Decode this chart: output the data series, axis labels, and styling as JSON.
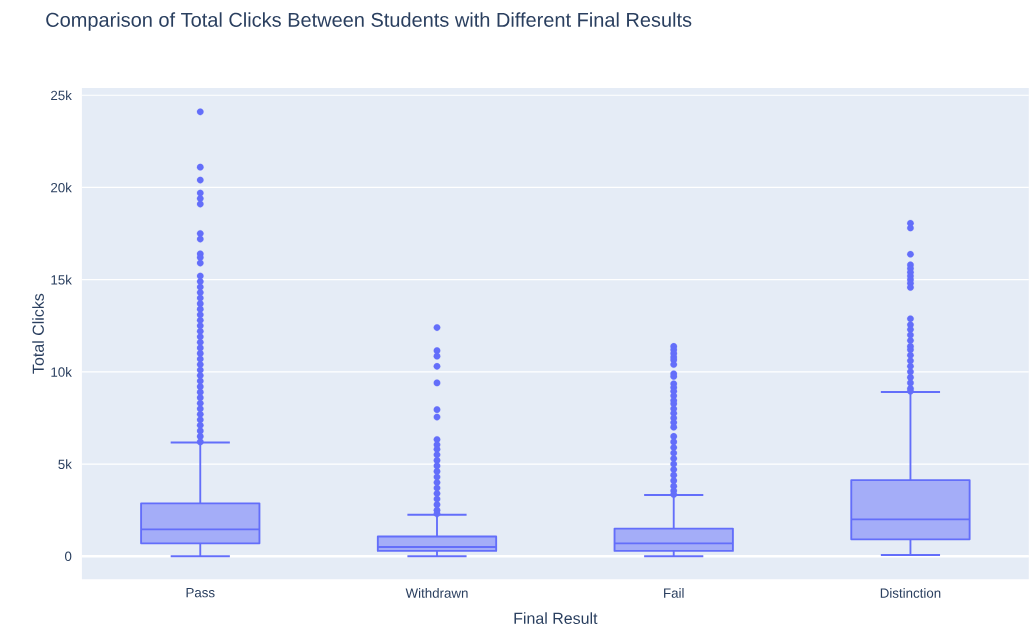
{
  "chart_data": {
    "type": "box",
    "title": "Comparison of Total Clicks Between Students with Different Final Results",
    "xlabel": "Final Result",
    "ylabel": "Total Clicks",
    "categories": [
      "Pass",
      "Withdrawn",
      "Fail",
      "Distinction"
    ],
    "color": "#636efa",
    "boxes": [
      {
        "low": 0,
        "q1": 700,
        "median": 1460,
        "q3": 2870,
        "high": 6170,
        "outliers": [
          24100,
          21100,
          20400,
          19700,
          19400,
          19100,
          17500,
          17200,
          16400,
          16200,
          15900,
          15200,
          14900,
          14600,
          14300,
          14000,
          13700,
          13400,
          13100,
          12800,
          12500,
          12200,
          11900,
          11600,
          11300,
          11000,
          10700,
          10400,
          10100,
          9800,
          9500,
          9200,
          8900,
          8600,
          8300,
          8000,
          7700,
          7400,
          7100,
          6800,
          6500,
          6200
        ]
      },
      {
        "low": 0,
        "q1": 290,
        "median": 500,
        "q3": 1070,
        "high": 2250,
        "outliers": [
          12400,
          11150,
          10850,
          10300,
          9400,
          7950,
          7550,
          6330,
          6050,
          5800,
          5500,
          5200,
          4900,
          4600,
          4300,
          4000,
          3700,
          3400,
          3100,
          2800,
          2500,
          2300
        ]
      },
      {
        "low": 0,
        "q1": 290,
        "median": 700,
        "q3": 1500,
        "high": 3320,
        "outliers": [
          11380,
          11200,
          11000,
          10800,
          10650,
          10400,
          9900,
          9750,
          9350,
          9150,
          8950,
          8700,
          8450,
          8270,
          8000,
          7750,
          7500,
          7250,
          7000,
          6500,
          6200,
          5900,
          5600,
          5300,
          5000,
          4700,
          4400,
          4100,
          3800,
          3550,
          3350
        ]
      },
      {
        "low": 70,
        "q1": 920,
        "median": 2000,
        "q3": 4130,
        "high": 8910,
        "outliers": [
          18060,
          17800,
          16380,
          15800,
          15600,
          15400,
          15200,
          15000,
          14800,
          14580,
          12880,
          12550,
          12300,
          12000,
          11700,
          11380,
          11200,
          10900,
          10600,
          10300,
          10000,
          9700,
          9400,
          9100,
          8950
        ]
      }
    ],
    "ylim": [
      -1250,
      25400
    ],
    "yticks": [
      0,
      {
        "value": 5000,
        "label": "5k"
      },
      {
        "value": 10000,
        "label": "10k"
      },
      {
        "value": 15000,
        "label": "15k"
      },
      {
        "value": 20000,
        "label": "20k"
      },
      {
        "value": 25000,
        "label": "25k"
      }
    ],
    "grid": "y"
  }
}
